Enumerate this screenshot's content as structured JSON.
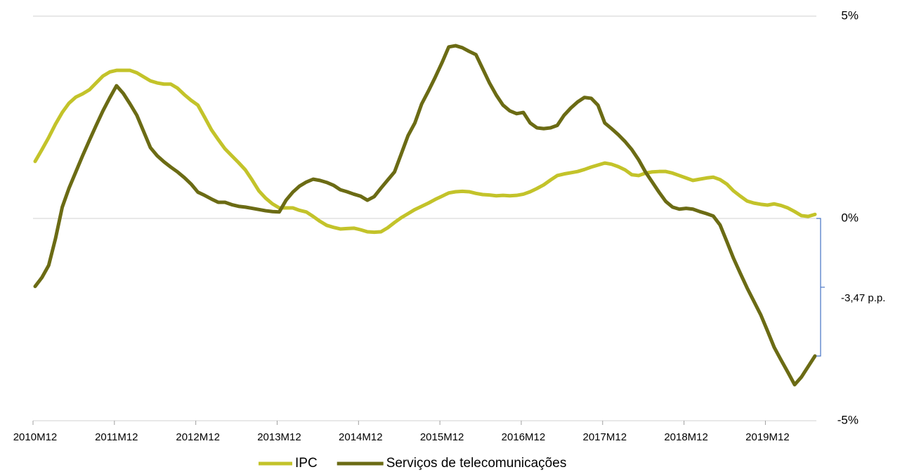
{
  "chart_data": {
    "type": "line",
    "categories": [
      "2010M12",
      null,
      null,
      null,
      null,
      null,
      null,
      null,
      null,
      null,
      null,
      null,
      "2011M12",
      null,
      null,
      null,
      null,
      null,
      null,
      null,
      null,
      null,
      null,
      null,
      "2012M12",
      null,
      null,
      null,
      null,
      null,
      null,
      null,
      null,
      null,
      null,
      null,
      "2013M12",
      null,
      null,
      null,
      null,
      null,
      null,
      null,
      null,
      null,
      null,
      null,
      "2014M12",
      null,
      null,
      null,
      null,
      null,
      null,
      null,
      null,
      null,
      null,
      null,
      "2015M12",
      null,
      null,
      null,
      null,
      null,
      null,
      null,
      null,
      null,
      null,
      null,
      "2016M12",
      null,
      null,
      null,
      null,
      null,
      null,
      null,
      null,
      null,
      null,
      null,
      "2017M12",
      null,
      null,
      null,
      null,
      null,
      null,
      null,
      null,
      null,
      null,
      null,
      "2018M12",
      null,
      null,
      null,
      null,
      null,
      null,
      null,
      null,
      null,
      null,
      null,
      "2019M12",
      null,
      null,
      null,
      null,
      null,
      null,
      null
    ],
    "series": [
      {
        "name": "IPC",
        "color": "#c3c32a",
        "values": [
          1.41,
          1.7,
          2.0,
          2.33,
          2.62,
          2.85,
          3.0,
          3.08,
          3.18,
          3.35,
          3.52,
          3.62,
          3.66,
          3.66,
          3.66,
          3.6,
          3.5,
          3.4,
          3.35,
          3.32,
          3.32,
          3.22,
          3.06,
          2.92,
          2.8,
          2.5,
          2.19,
          1.95,
          1.72,
          1.55,
          1.38,
          1.2,
          0.95,
          0.68,
          0.5,
          0.36,
          0.26,
          0.26,
          0.26,
          0.2,
          0.16,
          0.05,
          -0.07,
          -0.17,
          -0.22,
          -0.26,
          -0.25,
          -0.24,
          -0.28,
          -0.33,
          -0.34,
          -0.33,
          -0.23,
          -0.1,
          0.02,
          0.12,
          0.22,
          0.3,
          0.38,
          0.47,
          0.55,
          0.63,
          0.66,
          0.67,
          0.66,
          0.62,
          0.59,
          0.58,
          0.56,
          0.57,
          0.56,
          0.57,
          0.6,
          0.66,
          0.74,
          0.83,
          0.95,
          1.06,
          1.1,
          1.13,
          1.16,
          1.21,
          1.27,
          1.32,
          1.37,
          1.34,
          1.28,
          1.2,
          1.08,
          1.06,
          1.12,
          1.15,
          1.16,
          1.16,
          1.12,
          1.06,
          1.0,
          0.94,
          0.97,
          1.0,
          1.02,
          0.96,
          0.85,
          0.68,
          0.55,
          0.43,
          0.38,
          0.35,
          0.33,
          0.36,
          0.32,
          0.26,
          0.17,
          0.07,
          0.05,
          0.1
        ]
      },
      {
        "name": "Serviços de telecomunicações",
        "color": "#6b6b14",
        "values": [
          -1.68,
          -1.46,
          -1.16,
          -0.5,
          0.28,
          0.75,
          1.15,
          1.55,
          1.93,
          2.3,
          2.66,
          2.98,
          3.28,
          3.09,
          2.83,
          2.55,
          2.15,
          1.75,
          1.55,
          1.4,
          1.27,
          1.15,
          1.01,
          0.85,
          0.65,
          0.57,
          0.48,
          0.4,
          0.4,
          0.34,
          0.3,
          0.28,
          0.25,
          0.22,
          0.19,
          0.17,
          0.16,
          0.45,
          0.65,
          0.8,
          0.9,
          0.97,
          0.94,
          0.89,
          0.82,
          0.71,
          0.66,
          0.6,
          0.55,
          0.45,
          0.54,
          0.75,
          0.95,
          1.15,
          1.6,
          2.05,
          2.36,
          2.83,
          3.15,
          3.49,
          3.85,
          4.24,
          4.27,
          4.22,
          4.13,
          4.05,
          3.7,
          3.35,
          3.05,
          2.8,
          2.66,
          2.59,
          2.62,
          2.36,
          2.24,
          2.22,
          2.24,
          2.3,
          2.55,
          2.73,
          2.88,
          2.99,
          2.97,
          2.8,
          2.36,
          2.22,
          2.07,
          1.9,
          1.7,
          1.45,
          1.15,
          0.9,
          0.65,
          0.42,
          0.28,
          0.23,
          0.25,
          0.23,
          0.17,
          0.12,
          0.06,
          -0.16,
          -0.57,
          -0.99,
          -1.36,
          -1.72,
          -2.05,
          -2.38,
          -2.78,
          -3.19,
          -3.5,
          -3.8,
          -4.11,
          -3.92,
          -3.66,
          -3.4
        ]
      }
    ],
    "ylim": [
      -5,
      5
    ],
    "yticks": [
      {
        "value": 5,
        "label": "5%"
      },
      {
        "value": 0,
        "label": "0%"
      },
      {
        "value": -5,
        "label": "-5%"
      }
    ],
    "grid": true,
    "annotation": "-3,47 p.p."
  }
}
